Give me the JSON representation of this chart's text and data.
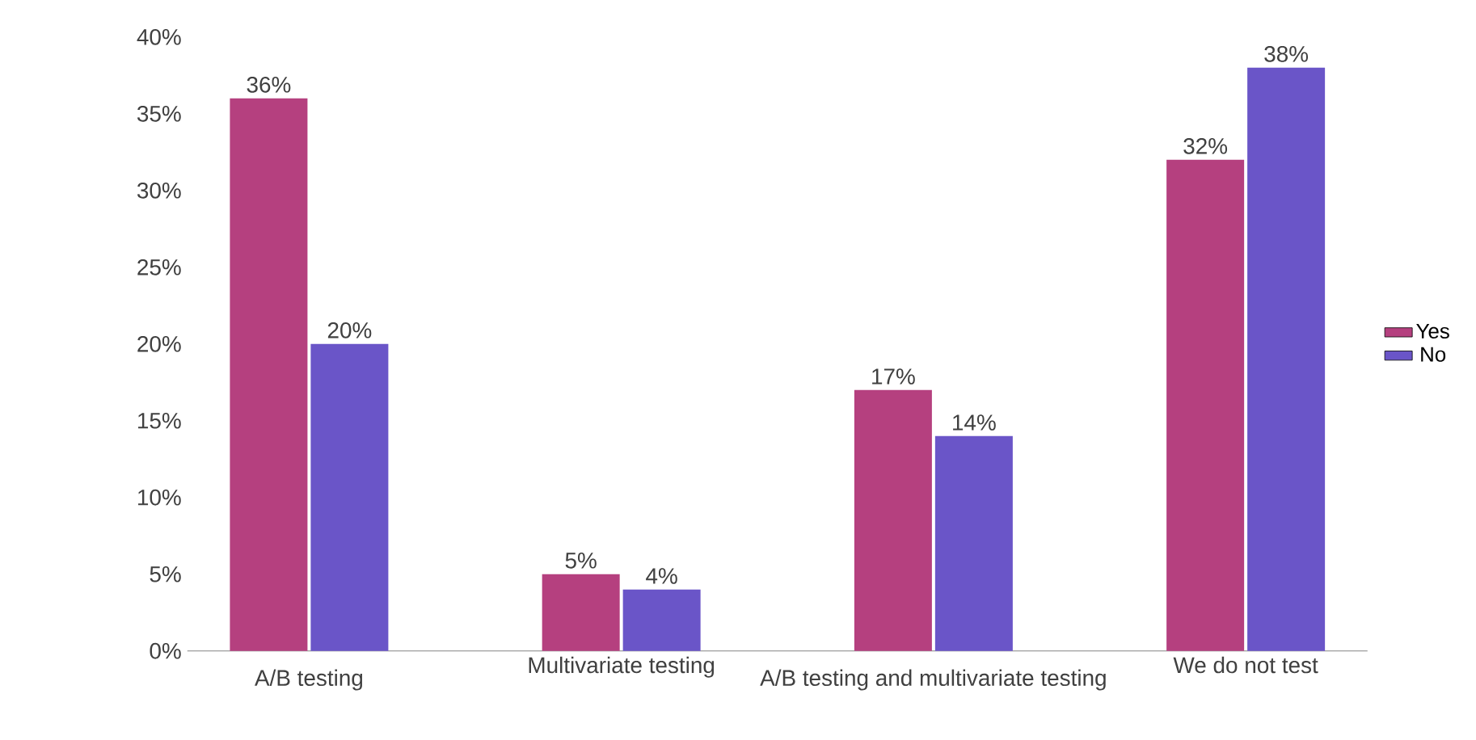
{
  "chart_data": {
    "type": "bar",
    "categories": [
      "A/B testing",
      "Multivariate testing",
      "A/B testing and multivariate testing",
      "We do not test"
    ],
    "series": [
      {
        "name": "Yes",
        "color": "#b5407f",
        "values": [
          36,
          5,
          17,
          32
        ],
        "value_labels": [
          "36%",
          "5%",
          "17%",
          "32%"
        ]
      },
      {
        "name": "No",
        "color": "#6a55c8",
        "values": [
          20,
          4,
          14,
          38
        ],
        "value_labels": [
          "20%",
          "4%",
          "14%",
          "38%"
        ]
      }
    ],
    "ylim": [
      0,
      40
    ],
    "yticks": [
      {
        "value": 0,
        "label": "0%"
      },
      {
        "value": 5,
        "label": "5%"
      },
      {
        "value": 10,
        "label": "10%"
      },
      {
        "value": 15,
        "label": "15%"
      },
      {
        "value": 20,
        "label": "20%"
      },
      {
        "value": 25,
        "label": "25%"
      },
      {
        "value": 30,
        "label": "30%"
      },
      {
        "value": 35,
        "label": "35%"
      },
      {
        "value": 40,
        "label": "40%"
      }
    ],
    "legend": "right"
  }
}
